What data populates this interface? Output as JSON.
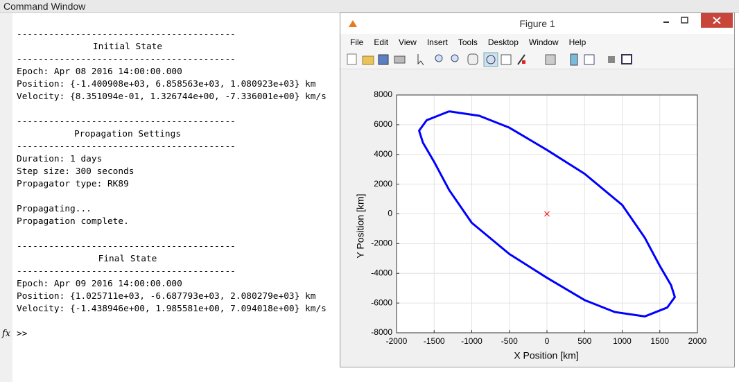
{
  "command_window": {
    "title": "Command Window",
    "blocks": [
      [
        "-----------------------------------------",
        "Initial State",
        "-----------------------------------------",
        "Epoch: Apr 08 2016 14:00:00.000",
        "Position: {-1.400908e+03, 6.858563e+03, 1.080923e+03} km",
        "Velocity: {8.351094e-01, 1.326744e+00, -7.336001e+00} km/s"
      ],
      [
        "-----------------------------------------",
        "Propagation Settings",
        "-----------------------------------------",
        "Duration: 1 days",
        "Step size: 300 seconds",
        "Propagator type: RK89"
      ],
      [
        "Propagating...",
        "Propagation complete."
      ],
      [
        "-----------------------------------------",
        "Final State",
        "-----------------------------------------",
        "Epoch: Apr 09 2016 14:00:00.000",
        "Position: {1.025711e+03, -6.687793e+03, 2.080279e+03} km",
        "Velocity: {-1.438946e+00, 1.985581e+00, 7.094018e+00} km/s"
      ]
    ],
    "prompt": ">>"
  },
  "figure": {
    "title": "Figure 1",
    "menu": [
      "File",
      "Edit",
      "View",
      "Insert",
      "Tools",
      "Desktop",
      "Window",
      "Help"
    ]
  },
  "chart_data": {
    "type": "line",
    "xlabel": "X Position [km]",
    "ylabel": "Y Position [km]",
    "color": "#0000ff",
    "grid": true,
    "x": [
      -1300,
      -900,
      -500,
      0,
      500,
      1000,
      1300,
      1500,
      1650,
      1700,
      1600,
      1300,
      900,
      500,
      0,
      -500,
      -1000,
      -1300,
      -1500,
      -1650,
      -1700,
      -1600,
      -1300
    ],
    "values": [
      6900,
      6600,
      5800,
      4300,
      2700,
      600,
      -1600,
      -3500,
      -4800,
      -5600,
      -6300,
      -6900,
      -6600,
      -5800,
      -4300,
      -2700,
      -600,
      1600,
      3500,
      4800,
      5600,
      6300,
      6900
    ],
    "marker": {
      "x": 0,
      "y": 0,
      "color": "#ff0000"
    },
    "xlim": [
      -2000,
      2000
    ],
    "xticks": [
      -2000,
      -1500,
      -1000,
      -500,
      0,
      500,
      1000,
      1500,
      2000
    ],
    "ylim": [
      -8000,
      8000
    ],
    "yticks": [
      -8000,
      -6000,
      -4000,
      -2000,
      0,
      2000,
      4000,
      6000,
      8000
    ]
  }
}
